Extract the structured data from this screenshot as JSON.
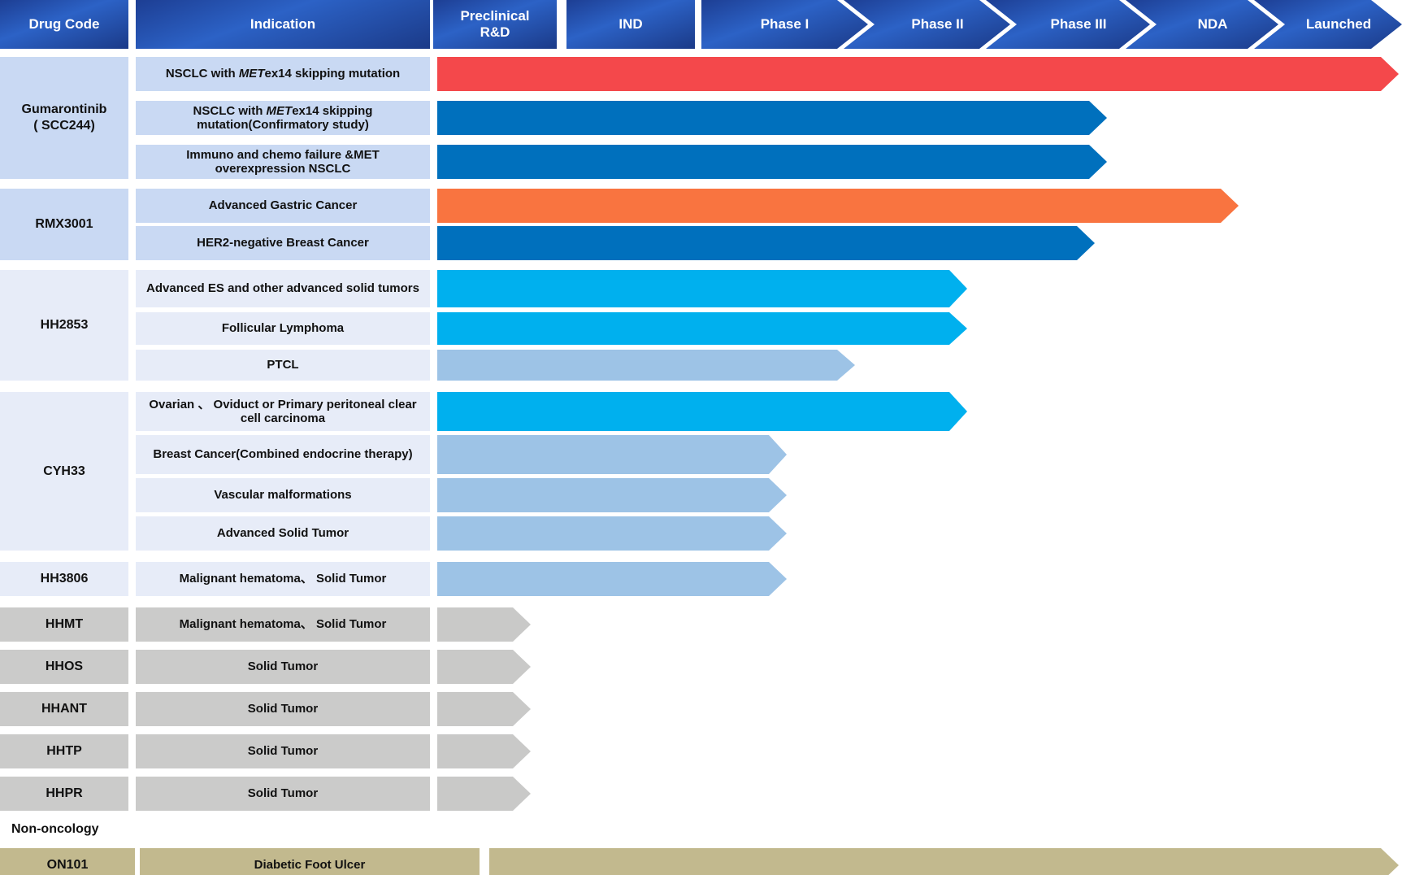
{
  "header": {
    "drug_code_label": "Drug Code",
    "indication_label": "Indication",
    "phases": [
      "Preclinical R&D",
      "IND",
      "Phase I",
      "Phase II",
      "Phase III",
      "NDA",
      "Launched"
    ]
  },
  "colors": {
    "launched_red": "#f4484b",
    "phase3_blue": "#0070bd",
    "nda_orange": "#f97440",
    "phase2_cyan": "#00b0ee",
    "phase1_steel": "#9dc3e6",
    "preclinical_gray": "#c9c9c8",
    "non_onc_tan": "#c2b98e",
    "cell_blue": "#c9d9f3",
    "cell_pale": "#e7ecf8",
    "cell_gray": "#cbcbca",
    "cell_tan": "#c2b98e"
  },
  "section_label": "Non-oncology",
  "groups": [
    {
      "drug_code_lines": [
        "Gumarontinib",
        "( SCC244)"
      ],
      "cell": "cell_blue",
      "rows": [
        {
          "indication": [
            {
              "t": "NSCLC with "
            },
            {
              "t": "MET",
              "i": 1
            },
            {
              "t": "ex14 skipping mutation"
            }
          ],
          "stage": "Launched",
          "bar": {
            "color": "launched_red",
            "start": 538,
            "end": 1721
          }
        },
        {
          "indication": [
            {
              "t": "NSCLC with "
            },
            {
              "t": "MET",
              "i": 1
            },
            {
              "t": "ex14 skipping mutation(Confirmatory study)"
            }
          ],
          "stage": "Phase III",
          "bar": {
            "color": "phase3_blue",
            "start": 538,
            "end": 1362
          }
        },
        {
          "indication": [
            {
              "t": "Immuno and chemo failure &MET overexpression NSCLC"
            }
          ],
          "stage": "Phase III",
          "bar": {
            "color": "phase3_blue",
            "start": 538,
            "end": 1362
          }
        }
      ]
    },
    {
      "drug_code_lines": [
        "RMX3001"
      ],
      "cell": "cell_blue",
      "rows": [
        {
          "indication": [
            {
              "t": "Advanced Gastric Cancer"
            }
          ],
          "stage": "NDA",
          "bar": {
            "color": "nda_orange",
            "start": 538,
            "end": 1524
          }
        },
        {
          "indication": [
            {
              "t": "HER2-negative Breast Cancer"
            }
          ],
          "stage": "Phase III",
          "bar": {
            "color": "phase3_blue",
            "start": 538,
            "end": 1347
          }
        }
      ]
    },
    {
      "drug_code_lines": [
        "HH2853"
      ],
      "cell": "cell_pale",
      "rows": [
        {
          "indication": [
            {
              "t": "Advanced ES and other advanced solid tumors"
            }
          ],
          "stage": "Phase II",
          "bar": {
            "color": "phase2_cyan",
            "start": 538,
            "end": 1190
          }
        },
        {
          "indication": [
            {
              "t": "Follicular Lymphoma"
            }
          ],
          "stage": "Phase II",
          "bar": {
            "color": "phase2_cyan",
            "start": 538,
            "end": 1190
          }
        },
        {
          "indication": [
            {
              "t": "PTCL"
            }
          ],
          "stage": "Phase I",
          "bar": {
            "color": "phase1_steel",
            "start": 538,
            "end": 1052
          }
        }
      ]
    },
    {
      "drug_code_lines": [
        "CYH33"
      ],
      "cell": "cell_pale",
      "rows": [
        {
          "indication": [
            {
              "t": "Ovarian 、 Oviduct or Primary peritoneal clear cell carcinoma"
            }
          ],
          "stage": "Phase II",
          "bar": {
            "color": "phase2_cyan",
            "start": 538,
            "end": 1190
          }
        },
        {
          "indication": [
            {
              "t": "Breast Cancer(Combined endocrine therapy)"
            }
          ],
          "stage": "Phase I",
          "bar": {
            "color": "phase1_steel",
            "start": 538,
            "end": 968
          }
        },
        {
          "indication": [
            {
              "t": "Vascular malformations"
            }
          ],
          "stage": "Phase I",
          "bar": {
            "color": "phase1_steel",
            "start": 538,
            "end": 968
          }
        },
        {
          "indication": [
            {
              "t": "Advanced Solid Tumor"
            }
          ],
          "stage": "Phase I",
          "bar": {
            "color": "phase1_steel",
            "start": 538,
            "end": 968
          }
        }
      ]
    },
    {
      "drug_code_lines": [
        "HH3806"
      ],
      "cell": "cell_pale",
      "rows": [
        {
          "indication": [
            {
              "t": "Malignant hematoma、 Solid Tumor"
            }
          ],
          "stage": "Phase I",
          "bar": {
            "color": "phase1_steel",
            "start": 538,
            "end": 968
          }
        }
      ]
    },
    {
      "drug_code_lines": [
        "HHMT"
      ],
      "cell": "cell_gray",
      "rows": [
        {
          "indication": [
            {
              "t": "Malignant hematoma、 Solid Tumor"
            }
          ],
          "stage": "Preclinical R&D",
          "bar": {
            "color": "preclinical_gray",
            "start": 538,
            "end": 653
          }
        }
      ]
    },
    {
      "drug_code_lines": [
        "HHOS"
      ],
      "cell": "cell_gray",
      "rows": [
        {
          "indication": [
            {
              "t": "Solid Tumor"
            }
          ],
          "stage": "Preclinical R&D",
          "bar": {
            "color": "preclinical_gray",
            "start": 538,
            "end": 653
          }
        }
      ]
    },
    {
      "drug_code_lines": [
        "HHANT"
      ],
      "cell": "cell_gray",
      "rows": [
        {
          "indication": [
            {
              "t": "Solid Tumor"
            }
          ],
          "stage": "Preclinical R&D",
          "bar": {
            "color": "preclinical_gray",
            "start": 538,
            "end": 653
          }
        }
      ]
    },
    {
      "drug_code_lines": [
        "HHTP"
      ],
      "cell": "cell_gray",
      "rows": [
        {
          "indication": [
            {
              "t": "Solid Tumor"
            }
          ],
          "stage": "Preclinical R&D",
          "bar": {
            "color": "preclinical_gray",
            "start": 538,
            "end": 653
          }
        }
      ]
    },
    {
      "drug_code_lines": [
        "HHPR"
      ],
      "cell": "cell_gray",
      "rows": [
        {
          "indication": [
            {
              "t": "Solid Tumor"
            }
          ],
          "stage": "Preclinical R&D",
          "bar": {
            "color": "preclinical_gray",
            "start": 538,
            "end": 653
          }
        }
      ]
    }
  ],
  "non_oncology_group": {
    "drug_code_lines": [
      "ON101"
    ],
    "cell": "cell_tan",
    "rows": [
      {
        "indication": [
          {
            "t": "Diabetic Foot Ulcer"
          }
        ],
        "stage": "Launched",
        "bar": {
          "color": "non_onc_tan",
          "start": 602,
          "end": 1721
        }
      }
    ]
  }
}
